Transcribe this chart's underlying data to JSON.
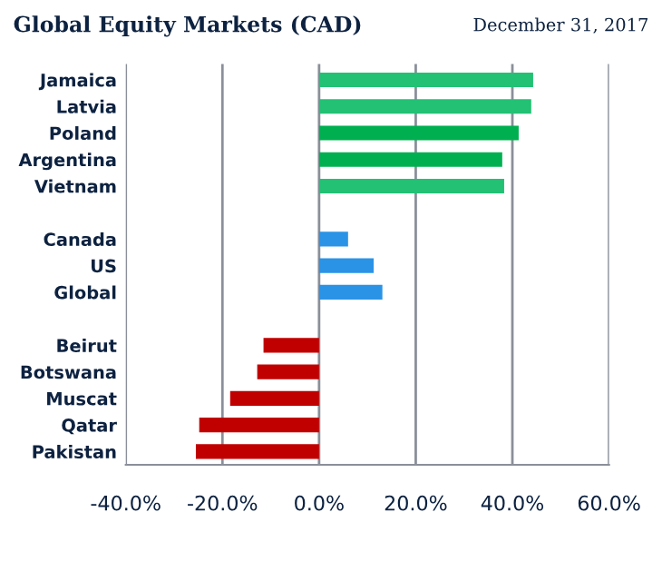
{
  "chart_data": {
    "type": "bar",
    "orientation": "horizontal",
    "title": "Global Equity Markets (CAD)",
    "subtitle": "December 31, 2017",
    "categories": [
      "Jamaica",
      "Latvia",
      "Poland",
      "Argentina",
      "Vietnam",
      null,
      "Canada",
      "US",
      "Global",
      null,
      "Beirut",
      "Botswana",
      "Muscat",
      "Qatar",
      "Pakistan"
    ],
    "values": [
      44.3,
      43.9,
      41.3,
      37.9,
      38.3,
      null,
      6.0,
      11.3,
      13.1,
      null,
      -11.5,
      -12.8,
      -18.4,
      -24.8,
      -25.5
    ],
    "colors": [
      "#22c174",
      "#22c174",
      "#00b050",
      "#00b050",
      "#22c174",
      null,
      "#2a93e6",
      "#2a93e6",
      "#2a93e6",
      null,
      "#c00000",
      "#c00000",
      "#c00000",
      "#c00000",
      "#c00000"
    ],
    "xlim": [
      -40,
      60
    ],
    "xticks": [
      {
        "value": -40,
        "label": "-40.0%"
      },
      {
        "value": -20,
        "label": "-20.0%"
      },
      {
        "value": 0,
        "label": "0.0%"
      },
      {
        "value": 20,
        "label": "20.0%"
      },
      {
        "value": 40,
        "label": "40.0%"
      },
      {
        "value": 60,
        "label": "60.0%"
      }
    ],
    "grid": "x",
    "legend": false
  }
}
